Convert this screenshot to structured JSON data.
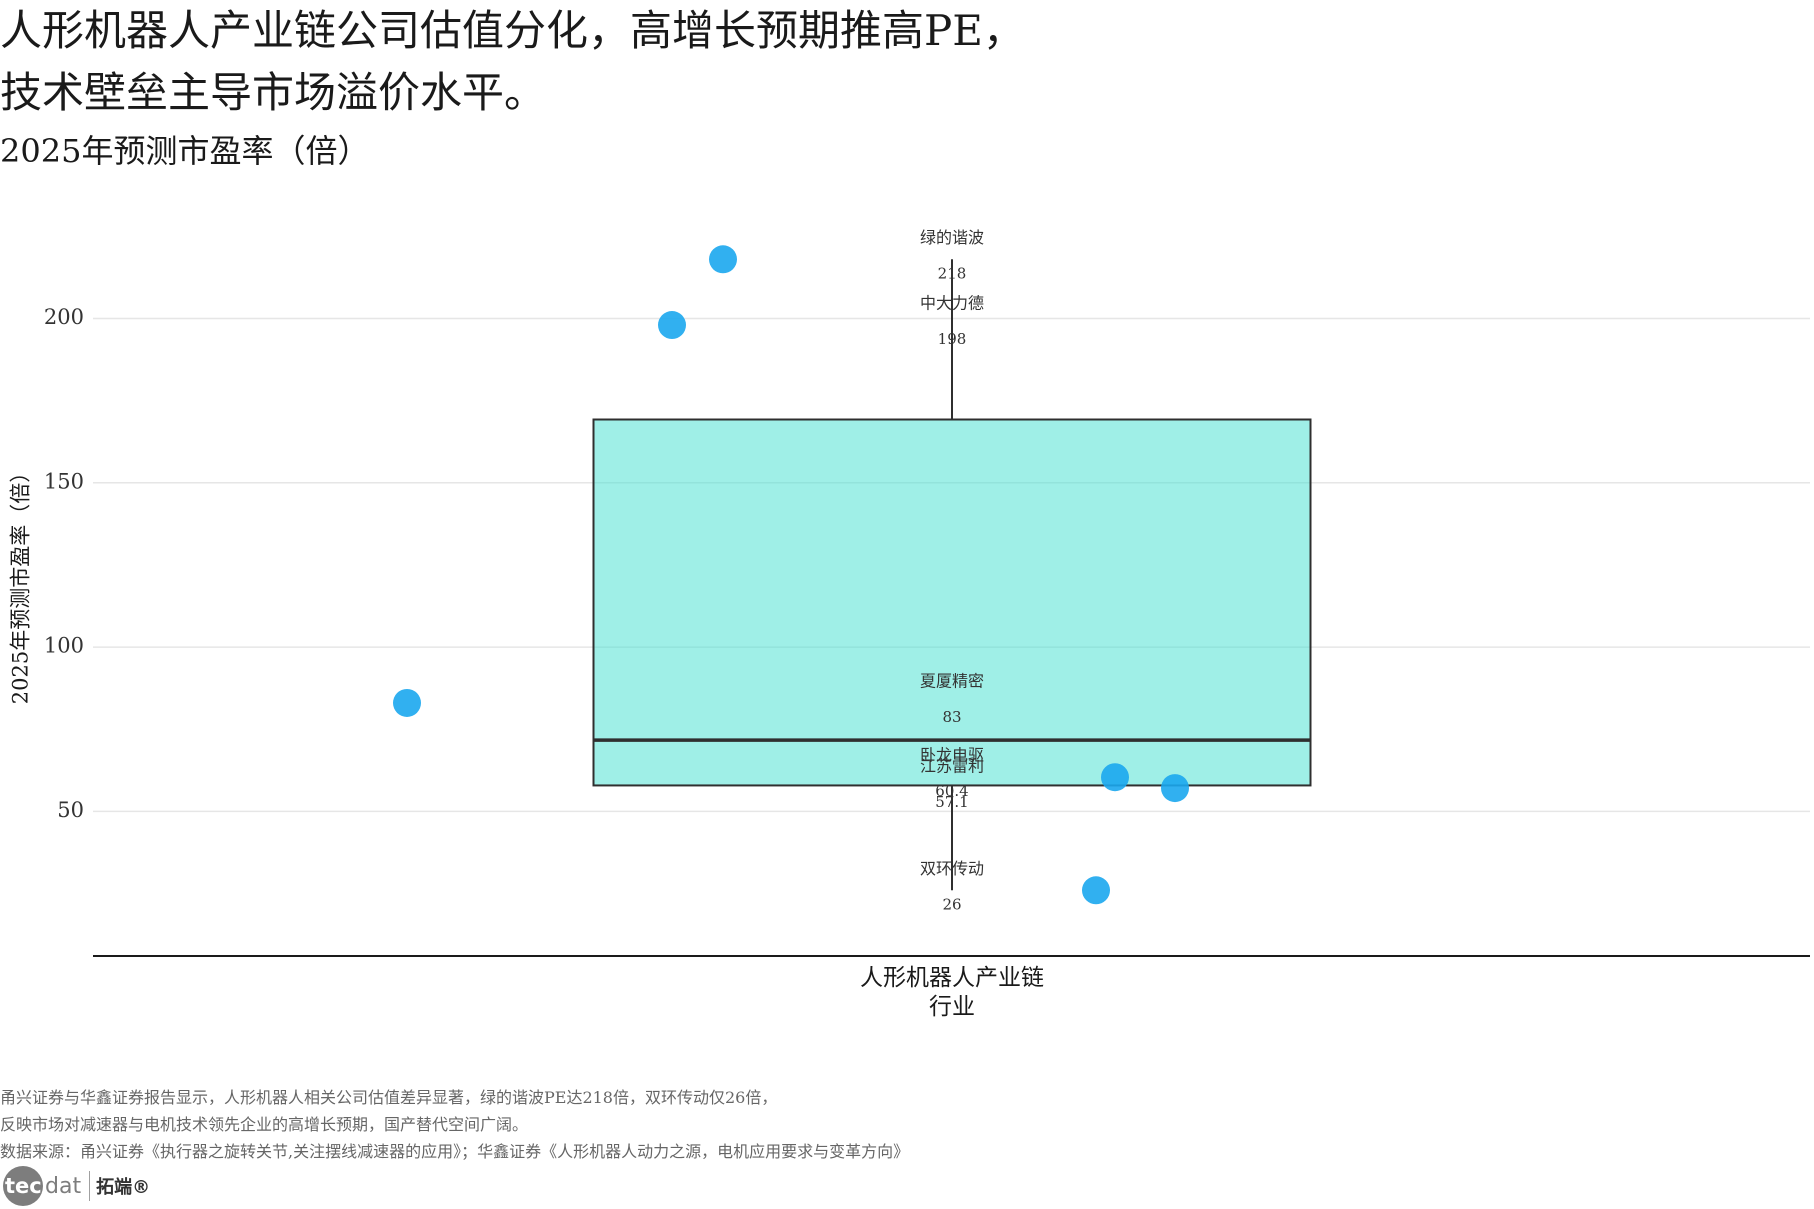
{
  "title_lines": [
    "人形机器人产业链公司估值分化，高增长预期推高PE，",
    "技术壁垒主导市场溢价水平。"
  ],
  "subtitle": "2025年预测市盈率（倍）",
  "chart_data": {
    "type": "box",
    "ylabel": "2025年预测市盈率（倍）",
    "xlabel": "行业",
    "categories": [
      "人形机器人产业链"
    ],
    "points": [
      {
        "name": "绿的谐波",
        "value": 218
      },
      {
        "name": "中大力德",
        "value": 198
      },
      {
        "name": "夏厦精密",
        "value": 83
      },
      {
        "name": "卧龙电驱",
        "value": 60.4
      },
      {
        "name": "江苏雷利",
        "value": 57.1
      },
      {
        "name": "双环传动",
        "value": 26
      }
    ],
    "box": {
      "min": 26,
      "q1": 57.9,
      "median": 71.7,
      "q3": 169.25,
      "max": 218
    },
    "yticks": [
      50,
      100,
      150,
      200
    ],
    "ylim": [
      6,
      233
    ],
    "grid": true,
    "colors": {
      "box_fill": "#40e0d0",
      "box_line": "#2f2f2f",
      "points": "#1ba7ee",
      "grid": "#e6e6e6",
      "axis": "#1a1a1a"
    }
  },
  "notes": [
    "甬兴证券与华鑫证券报告显示，人形机器人相关公司估值差异显著，绿的谐波PE达218倍，双环传动仅26倍，",
    "反映市场对减速器与电机技术领先企业的高增长预期，国产替代空间广阔。",
    "数据来源：甬兴证券《执行器之旋转关节,关注摆线减速器的应用》；华鑫证券《人形机器人动力之源，电机应用要求与变革方向》"
  ],
  "logo": {
    "mark": "tec",
    "mark_rest": "dat",
    "brand": "拓端®"
  }
}
